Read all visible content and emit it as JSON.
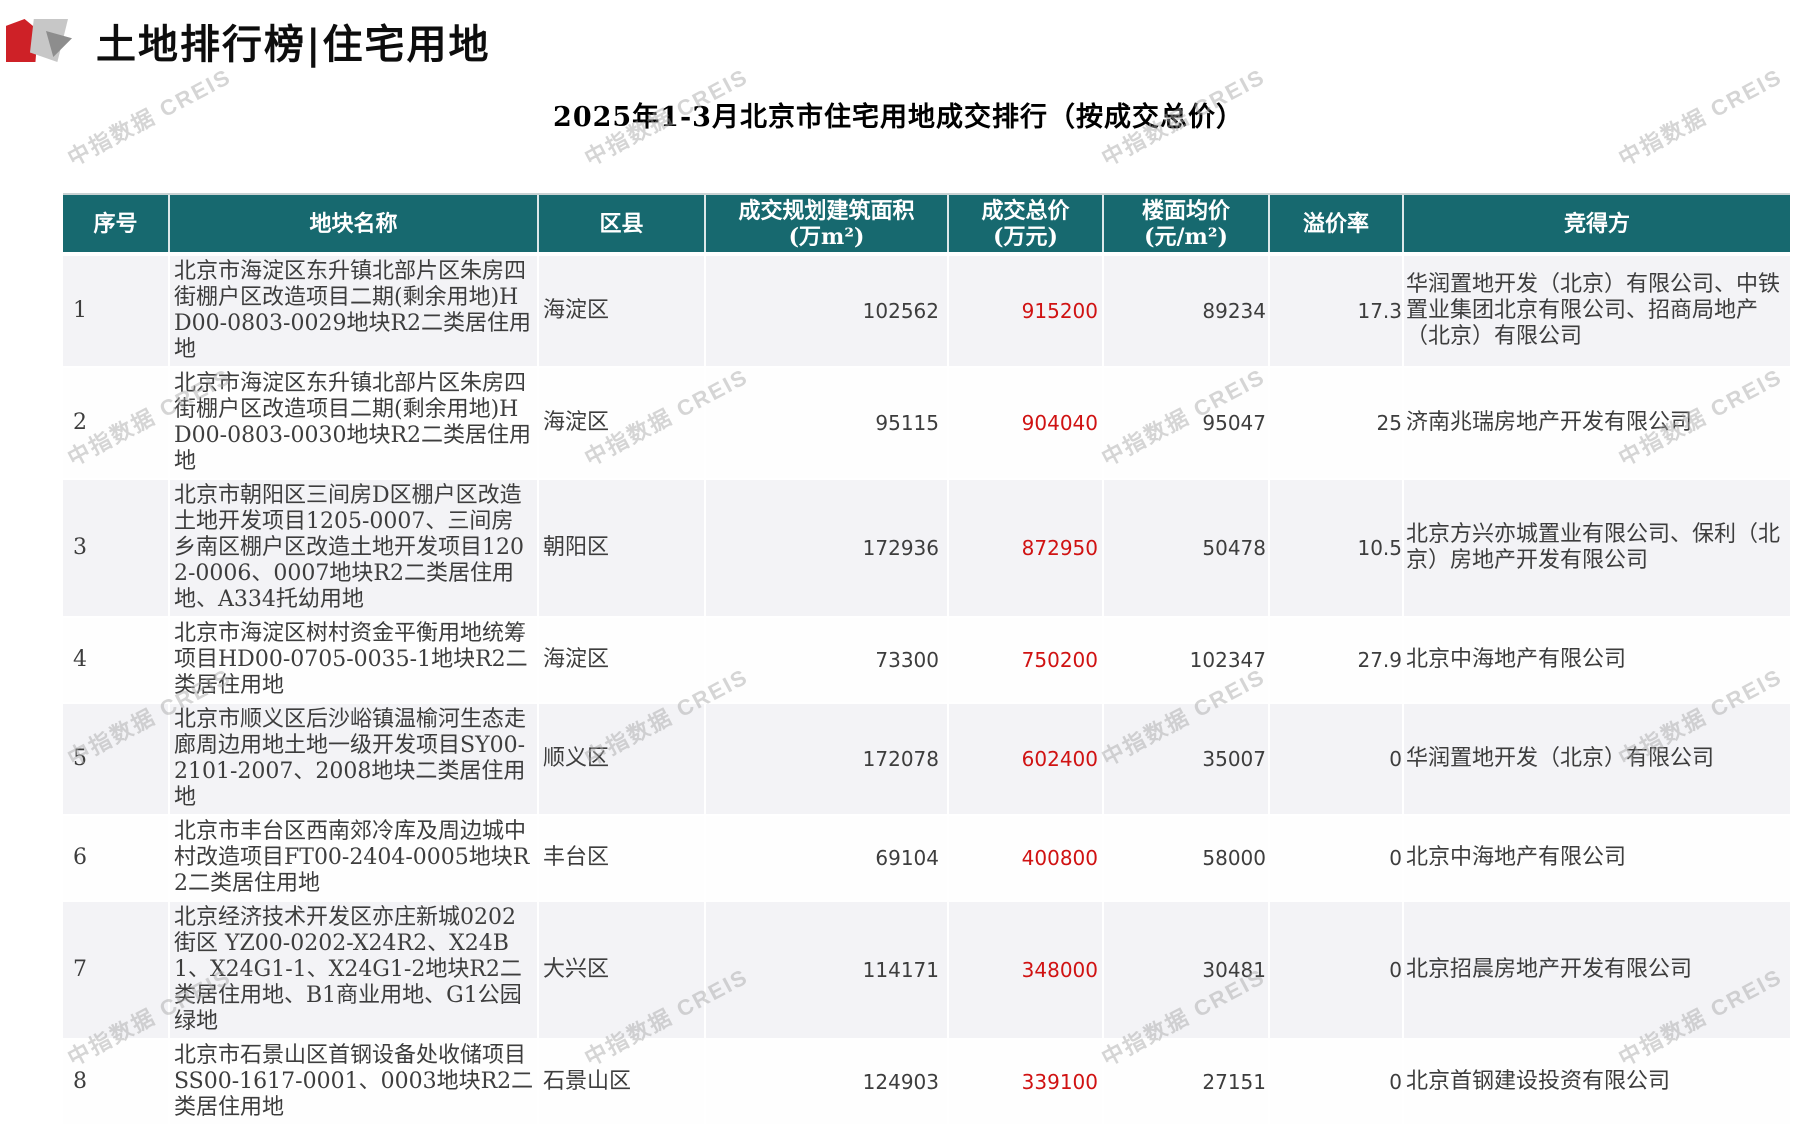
{
  "page": {
    "title": "土地排行榜|住宅用地",
    "subtitle": "2025年1-3月北京市住宅用地成交排行（按成交总价）",
    "watermark": "中指数据 CREIS"
  },
  "colors": {
    "header_bg": "#17696F",
    "accent_red": "#D01212",
    "logo_red": "#CE2127"
  },
  "table": {
    "headers": [
      {
        "label": "序号",
        "unit": ""
      },
      {
        "label": "地块名称",
        "unit": ""
      },
      {
        "label": "区县",
        "unit": ""
      },
      {
        "label": "成交规划建筑面积",
        "unit": "(万m²)"
      },
      {
        "label": "成交总价",
        "unit": "(万元)"
      },
      {
        "label": "楼面均价",
        "unit": "(元/m²)"
      },
      {
        "label": "溢价率",
        "unit": ""
      },
      {
        "label": "竞得方",
        "unit": ""
      }
    ],
    "rows": [
      {
        "seq": "1",
        "name": "北京市海淀区东升镇北部片区朱房四街棚户区改造项目二期(剩余用地)HD00-0803-0029地块R2二类居住用地",
        "district": "海淀区",
        "area": "102562",
        "total": "915200",
        "floor": "89234",
        "premium": "17.3",
        "winner": "华润置地开发（北京）有限公司、中铁置业集团北京有限公司、招商局地产（北京）有限公司"
      },
      {
        "seq": "2",
        "name": "北京市海淀区东升镇北部片区朱房四街棚户区改造项目二期(剩余用地)HD00-0803-0030地块R2二类居住用地",
        "district": "海淀区",
        "area": "95115",
        "total": "904040",
        "floor": "95047",
        "premium": "25",
        "winner": "济南兆瑞房地产开发有限公司"
      },
      {
        "seq": "3",
        "name": "北京市朝阳区三间房D区棚户区改造土地开发项目1205-0007、三间房乡南区棚户区改造土地开发项目1202-0006、0007地块R2二类居住用地、A334托幼用地",
        "district": "朝阳区",
        "area": "172936",
        "total": "872950",
        "floor": "50478",
        "premium": "10.5",
        "winner": "北京方兴亦城置业有限公司、保利（北京）房地产开发有限公司"
      },
      {
        "seq": "4",
        "name": "北京市海淀区树村资金平衡用地统筹项目HD00-0705-0035-1地块R2二类居住用地",
        "district": "海淀区",
        "area": "73300",
        "total": "750200",
        "floor": "102347",
        "premium": "27.9",
        "winner": "北京中海地产有限公司"
      },
      {
        "seq": "5",
        "name": "北京市顺义区后沙峪镇温榆河生态走廊周边用地土地一级开发项目SY00-2101-2007、2008地块二类居住用地",
        "district": "顺义区",
        "area": "172078",
        "total": "602400",
        "floor": "35007",
        "premium": "0",
        "winner": "华润置地开发（北京）有限公司"
      },
      {
        "seq": "6",
        "name": "北京市丰台区西南郊冷库及周边城中村改造项目FT00-2404-0005地块R2二类居住用地",
        "district": "丰台区",
        "area": "69104",
        "total": "400800",
        "floor": "58000",
        "premium": "0",
        "winner": "北京中海地产有限公司"
      },
      {
        "seq": "7",
        "name": "北京经济技术开发区亦庄新城0202街区 YZ00-0202-X24R2、X24B1、X24G1-1、X24G1-2地块R2二类居住用地、B1商业用地、G1公园绿地",
        "district": "大兴区",
        "area": "114171",
        "total": "348000",
        "floor": "30481",
        "premium": "0",
        "winner": "北京招晨房地产开发有限公司"
      },
      {
        "seq": "8",
        "name": "北京市石景山区首钢设备处收储项目SS00-1617-0001、0003地块R2二类居住用地",
        "district": "石景山区",
        "area": "124903",
        "total": "339100",
        "floor": "27151",
        "premium": "0",
        "winner": "北京首钢建设投资有限公司"
      }
    ]
  }
}
